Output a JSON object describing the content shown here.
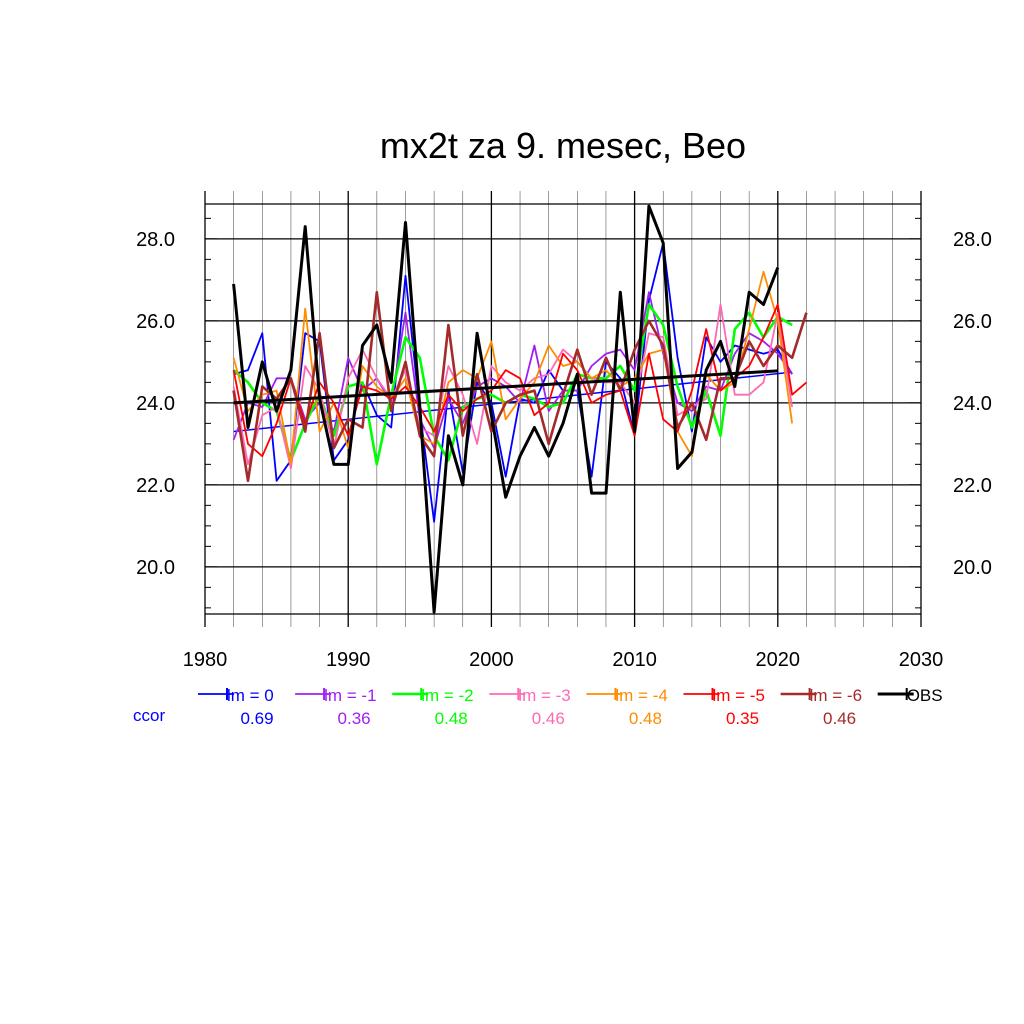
{
  "chart_data": {
    "type": "line",
    "title": "mx2t za 9. mesec, Beo",
    "xlabel": "",
    "ylabel": "",
    "xlim": [
      1980,
      2030
    ],
    "ylim": [
      18.85,
      28.85
    ],
    "x_ticks": [
      "1980",
      "1990",
      "2000",
      "2010",
      "2020",
      "2030"
    ],
    "y_ticks": [
      "20.0",
      "22.0",
      "24.0",
      "26.0",
      "28.0"
    ],
    "grid": true,
    "ccor_label": "ccor",
    "legend_position": "bottom",
    "series": [
      {
        "name": "lm = 0",
        "color": "#0000ff",
        "ccor": "0.69",
        "width": 1.8,
        "x": [
          1982,
          1983,
          1984,
          1985,
          1986,
          1987,
          1988,
          1989,
          1990,
          1991,
          1992,
          1993,
          1994,
          1995,
          1996,
          1997,
          1998,
          1999,
          2000,
          2001,
          2002,
          2003,
          2004,
          2005,
          2006,
          2007,
          2008,
          2009,
          2010,
          2011,
          2012,
          2013,
          2014,
          2015,
          2016,
          2017,
          2018,
          2019,
          2020,
          2021
        ],
        "y": [
          24.7,
          24.8,
          25.7,
          22.1,
          22.6,
          25.7,
          25.5,
          22.6,
          23.1,
          24.5,
          23.7,
          23.4,
          27.1,
          23.8,
          21.1,
          24.3,
          22.3,
          24.5,
          24.0,
          22.2,
          24.1,
          24.0,
          24.8,
          24.3,
          24.3,
          22.2,
          25.0,
          24.6,
          23.2,
          26.5,
          27.9,
          25.1,
          23.3,
          25.6,
          25.0,
          25.4,
          25.3,
          25.2,
          25.3,
          24.7
        ],
        "trend": [
          23.3,
          24.75
        ]
      },
      {
        "name": "lm = -1",
        "color": "#a020f0",
        "ccor": "0.36",
        "width": 1.8,
        "x": [
          1982,
          1983,
          1984,
          1985,
          1986,
          1987,
          1988,
          1989,
          1990,
          1991,
          1992,
          1993,
          1994,
          1995,
          1996,
          1997,
          1998,
          1999,
          2000,
          2001,
          2002,
          2003,
          2004,
          2005,
          2006,
          2007,
          2008,
          2009,
          2010,
          2011,
          2012,
          2013,
          2014,
          2015,
          2016,
          2017,
          2018,
          2019,
          2020,
          2021
        ],
        "y": [
          23.1,
          24.0,
          23.9,
          24.6,
          24.6,
          23.6,
          24.0,
          23.3,
          25.1,
          24.3,
          24.6,
          24.0,
          26.2,
          23.6,
          22.9,
          24.1,
          23.5,
          24.4,
          24.6,
          24.4,
          24.0,
          25.4,
          23.8,
          24.3,
          24.3,
          24.9,
          25.2,
          25.3,
          24.8,
          26.7,
          25.2,
          24.0,
          23.8,
          24.4,
          24.3,
          25.2,
          25.7,
          25.5,
          25.2,
          24.7
        ]
      },
      {
        "name": "lm = -2",
        "color": "#00ff00",
        "ccor": "0.48",
        "width": 2.6,
        "x": [
          1982,
          1983,
          1984,
          1985,
          1986,
          1987,
          1988,
          1989,
          1990,
          1991,
          1992,
          1993,
          1994,
          1995,
          1996,
          1997,
          1998,
          1999,
          2000,
          2001,
          2002,
          2003,
          2004,
          2005,
          2006,
          2007,
          2008,
          2009,
          2010,
          2011,
          2012,
          2013,
          2014,
          2015,
          2016,
          2017,
          2018,
          2019,
          2020,
          2021
        ],
        "y": [
          24.8,
          24.5,
          24.0,
          23.8,
          22.6,
          23.5,
          24.2,
          23.2,
          24.4,
          24.5,
          22.5,
          24.2,
          25.6,
          25.1,
          23.2,
          22.6,
          23.9,
          24.1,
          24.2,
          24.0,
          24.2,
          24.1,
          23.9,
          24.0,
          24.7,
          24.6,
          24.6,
          24.9,
          24.3,
          26.4,
          25.9,
          24.4,
          23.4,
          24.3,
          23.2,
          25.8,
          26.2,
          25.6,
          26.1,
          25.9
        ]
      },
      {
        "name": "lm = -3",
        "color": "#ff69b4",
        "ccor": "0.46",
        "width": 1.8,
        "x": [
          1982,
          1983,
          1984,
          1985,
          1986,
          1987,
          1988,
          1989,
          1990,
          1991,
          1992,
          1993,
          1994,
          1995,
          1996,
          1997,
          1998,
          1999,
          2000,
          2001,
          2002,
          2003,
          2004,
          2005,
          2006,
          2007,
          2008,
          2009,
          2010,
          2011,
          2012,
          2013,
          2014,
          2015,
          2016,
          2017,
          2018,
          2019,
          2020,
          2021
        ],
        "y": [
          24.4,
          22.5,
          23.7,
          23.9,
          22.4,
          24.9,
          24.3,
          22.9,
          24.6,
          25.3,
          24.6,
          24.1,
          24.8,
          23.4,
          23.2,
          24.9,
          24.2,
          23.0,
          24.9,
          24.5,
          24.3,
          24.6,
          24.7,
          25.3,
          25.0,
          24.6,
          24.5,
          24.5,
          24.0,
          25.7,
          25.6,
          23.7,
          23.9,
          24.1,
          26.4,
          24.2,
          24.2,
          24.5,
          26.2,
          23.9
        ]
      },
      {
        "name": "lm = -4",
        "color": "#ff8c00",
        "ccor": "0.48",
        "width": 1.8,
        "x": [
          1982,
          1983,
          1984,
          1985,
          1986,
          1987,
          1988,
          1989,
          1990,
          1991,
          1992,
          1993,
          1994,
          1995,
          1996,
          1997,
          1998,
          1999,
          2000,
          2001,
          2002,
          2003,
          2004,
          2005,
          2006,
          2007,
          2008,
          2009,
          2010,
          2011,
          2012,
          2013,
          2014,
          2015,
          2016,
          2017,
          2018,
          2019,
          2020,
          2021
        ],
        "y": [
          25.1,
          23.8,
          24.2,
          24.3,
          22.5,
          26.3,
          23.3,
          24.0,
          22.9,
          24.9,
          24.4,
          24.1,
          24.6,
          23.2,
          23.0,
          24.5,
          24.8,
          24.6,
          25.5,
          23.6,
          24.1,
          24.5,
          25.4,
          24.9,
          25.0,
          24.6,
          24.8,
          24.4,
          24.6,
          25.2,
          25.3,
          23.3,
          22.7,
          24.7,
          24.3,
          24.5,
          25.8,
          27.2,
          26.0,
          23.5
        ]
      },
      {
        "name": "lm = -5",
        "color": "#ff0000",
        "ccor": "0.35",
        "width": 1.8,
        "x": [
          1982,
          1983,
          1984,
          1985,
          1986,
          1987,
          1988,
          1989,
          1990,
          1991,
          1992,
          1993,
          1994,
          1995,
          1996,
          1997,
          1998,
          1999,
          2000,
          2001,
          2002,
          2003,
          2004,
          2005,
          2006,
          2007,
          2008,
          2009,
          2010,
          2011,
          2012,
          2013,
          2014,
          2015,
          2016,
          2017,
          2018,
          2019,
          2020,
          2021,
          2022
        ],
        "y": [
          24.8,
          23.0,
          22.7,
          23.5,
          24.6,
          23.5,
          24.5,
          24.0,
          23.2,
          24.4,
          24.3,
          24.1,
          24.4,
          23.9,
          23.3,
          24.2,
          23.8,
          24.1,
          24.3,
          24.8,
          24.6,
          23.7,
          24.0,
          25.2,
          24.8,
          24.0,
          24.2,
          24.3,
          23.2,
          25.2,
          23.6,
          23.3,
          24.3,
          25.8,
          24.3,
          24.6,
          24.9,
          25.6,
          26.4,
          24.2,
          24.5
        ]
      },
      {
        "name": "lm = -6",
        "color": "#a52a2a",
        "ccor": "0.46",
        "width": 2.6,
        "x": [
          1982,
          1983,
          1984,
          1985,
          1986,
          1987,
          1988,
          1989,
          1990,
          1991,
          1992,
          1993,
          1994,
          1995,
          1996,
          1997,
          1998,
          1999,
          2000,
          2001,
          2002,
          2003,
          2004,
          2005,
          2006,
          2007,
          2008,
          2009,
          2010,
          2011,
          2012,
          2013,
          2014,
          2015,
          2016,
          2017,
          2018,
          2019,
          2020,
          2021,
          2022
        ],
        "y": [
          24.3,
          22.1,
          24.4,
          24.1,
          24.6,
          23.3,
          25.7,
          22.9,
          23.6,
          23.4,
          26.7,
          23.8,
          25.0,
          23.2,
          22.7,
          25.9,
          23.2,
          24.7,
          23.3,
          24.0,
          24.2,
          24.3,
          23.0,
          24.2,
          25.3,
          24.2,
          25.1,
          24.3,
          25.3,
          26.0,
          25.4,
          23.4,
          24.0,
          23.1,
          24.6,
          24.6,
          25.5,
          24.9,
          25.4,
          25.1,
          26.2
        ]
      },
      {
        "name": "OBS",
        "color": "#000000",
        "ccor": "",
        "width": 3,
        "x": [
          1982,
          1983,
          1984,
          1985,
          1986,
          1987,
          1988,
          1989,
          1990,
          1991,
          1992,
          1993,
          1994,
          1995,
          1996,
          1997,
          1998,
          1999,
          2000,
          2001,
          2002,
          2003,
          2004,
          2005,
          2006,
          2007,
          2008,
          2009,
          2010,
          2011,
          2012,
          2013,
          2014,
          2015,
          2016,
          2017,
          2018,
          2019,
          2020
        ],
        "y": [
          26.9,
          23.4,
          25.0,
          23.8,
          24.8,
          28.3,
          24.1,
          22.5,
          22.5,
          25.4,
          25.9,
          24.5,
          28.4,
          23.9,
          18.9,
          23.2,
          22.0,
          25.7,
          23.7,
          21.7,
          22.7,
          23.4,
          22.7,
          23.5,
          24.7,
          21.8,
          21.8,
          26.7,
          23.3,
          28.8,
          27.9,
          22.4,
          22.8,
          24.8,
          25.5,
          24.4,
          26.7,
          26.4,
          27.3
        ],
        "trend": [
          24.0,
          24.78
        ]
      }
    ]
  }
}
